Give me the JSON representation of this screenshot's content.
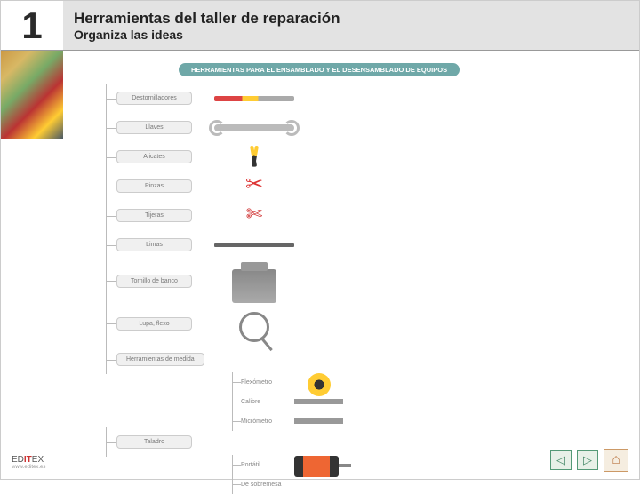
{
  "header": {
    "number": "1",
    "title": "Herramientas del taller de reparación",
    "subtitle": "Organiza las ideas"
  },
  "diagram": {
    "title": "HERRAMIENTAS PARA EL ENSAMBLADO Y EL DESENSAMBLADO DE EQUIPOS",
    "rows": [
      {
        "label": "Destornilladores",
        "svg": "screwdriver"
      },
      {
        "label": "Llaves",
        "svg": "wrench"
      },
      {
        "label": "Alicates",
        "svg": "pliers"
      },
      {
        "label": "Pinzas",
        "svg": "scissors"
      },
      {
        "label": "Tijeras",
        "svg": "cutters"
      },
      {
        "label": "Limas",
        "svg": "file"
      },
      {
        "label": "Tornillo de banco",
        "svg": "vise",
        "tall": true
      },
      {
        "label": "Lupa, flexo",
        "svg": "magnifier",
        "tall": true
      }
    ],
    "measure_node": "Herramientas de medida",
    "measure_children": [
      {
        "label": "Flexómetro",
        "svg": "tape"
      },
      {
        "label": "Calibre",
        "svg": "caliper"
      },
      {
        "label": "Micrómetro",
        "svg": "caliper"
      }
    ],
    "drill_node": "Taladro",
    "drill_children": [
      {
        "label": "Portátil",
        "svg": "drill"
      },
      {
        "label": "De sobremesa",
        "svg": ""
      }
    ]
  },
  "footer": {
    "logo_prefix": "ED",
    "logo_mid": "IT",
    "logo_suffix": "EX",
    "url": "www.editex.es"
  },
  "nav": {
    "prev": "◁",
    "next": "▷",
    "home": "⌂"
  },
  "colors": {
    "header_bg": "#e3e3e3",
    "node_bg": "#f0f0f0",
    "title_bg": "#6fa8a8",
    "line": "#bbbbbb"
  }
}
